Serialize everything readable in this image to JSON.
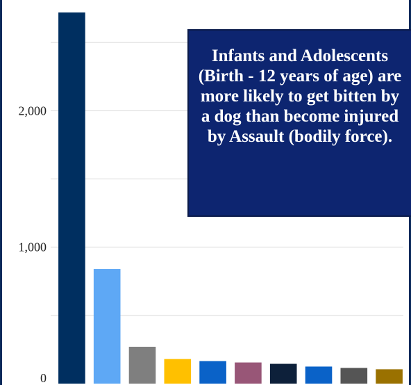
{
  "chart_data": {
    "type": "bar",
    "title": "",
    "xlabel": "",
    "ylabel": "",
    "ylim": [
      0,
      2750
    ],
    "yticks": [
      0,
      1000,
      2000
    ],
    "ytick_labels": [
      "0",
      "1,000",
      "2,000"
    ],
    "gridlines": [
      500,
      1000,
      1500,
      2000,
      2500
    ],
    "grid": true,
    "values": [
      2720,
      840,
      270,
      180,
      165,
      155,
      145,
      125,
      115,
      105
    ],
    "colors": [
      "#002f60",
      "#5ea8f5",
      "#7f7f7f",
      "#ffc000",
      "#0a62c8",
      "#985677",
      "#0d203a",
      "#0a62c8",
      "#555555",
      "#9a7100"
    ]
  },
  "annotation": {
    "text": "Infants and Adolescents (Birth - 12 years of age) are more likely to get bitten by a dog than become injured by Assault (bodily force)."
  }
}
